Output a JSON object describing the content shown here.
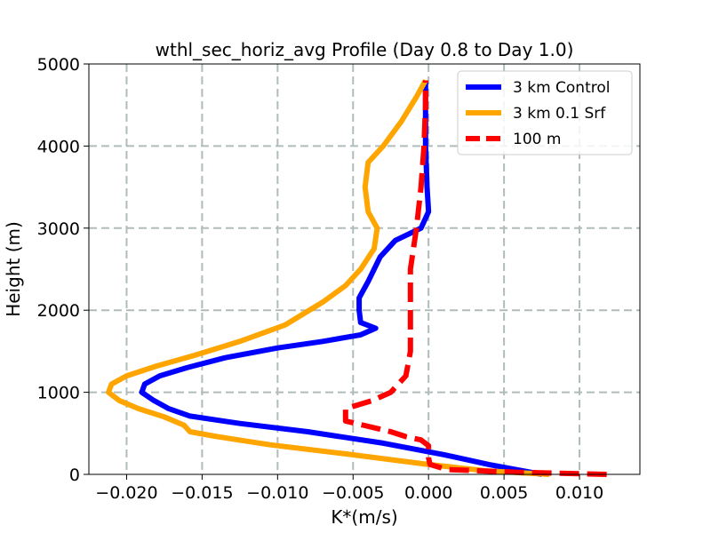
{
  "chart_data": {
    "type": "line",
    "title": "wthl_sec_horiz_avg Profile (Day 0.8 to Day 1.0)",
    "xlabel": "K*(m/s)",
    "ylabel": "Height (m)",
    "xlim": [
      -0.0225,
      0.014
    ],
    "ylim": [
      0,
      5000
    ],
    "xticks": [
      -0.02,
      -0.015,
      -0.01,
      -0.005,
      0.0,
      0.005,
      0.01
    ],
    "xtick_labels": [
      "−0.020",
      "−0.015",
      "−0.010",
      "−0.005",
      "0.000",
      "0.005",
      "0.010"
    ],
    "yticks": [
      0,
      1000,
      2000,
      3000,
      4000,
      5000
    ],
    "ytick_labels": [
      "0",
      "1000",
      "2000",
      "3000",
      "4000",
      "5000"
    ],
    "grid": true,
    "legend_position": "top-right",
    "series": [
      {
        "name": "3 km Control",
        "color": "#0000ff",
        "style": "solid",
        "points": [
          [
            0.0075,
            0
          ],
          [
            0.004,
            120
          ],
          [
            0.001,
            240
          ],
          [
            -0.003,
            380
          ],
          [
            -0.008,
            520
          ],
          [
            -0.0125,
            620
          ],
          [
            -0.0158,
            710
          ],
          [
            -0.0172,
            800
          ],
          [
            -0.0182,
            900
          ],
          [
            -0.019,
            1000
          ],
          [
            -0.0188,
            1100
          ],
          [
            -0.0178,
            1200
          ],
          [
            -0.016,
            1300
          ],
          [
            -0.0135,
            1420
          ],
          [
            -0.01,
            1540
          ],
          [
            -0.007,
            1620
          ],
          [
            -0.0045,
            1700
          ],
          [
            -0.0035,
            1780
          ],
          [
            -0.0045,
            1850
          ],
          [
            -0.0046,
            2000
          ],
          [
            -0.0046,
            2150
          ],
          [
            -0.004,
            2350
          ],
          [
            -0.0032,
            2650
          ],
          [
            -0.0022,
            2850
          ],
          [
            -0.0005,
            3000
          ],
          [
            0.0,
            3200
          ],
          [
            -0.0001,
            3500
          ],
          [
            -0.0002,
            4000
          ],
          [
            -0.0002,
            4500
          ],
          [
            -0.0002,
            4800
          ]
        ]
      },
      {
        "name": "3 km 0.1 Srf",
        "color": "#ffa500",
        "style": "solid",
        "points": [
          [
            0.008,
            0
          ],
          [
            0.004,
            40
          ],
          [
            0.0,
            120
          ],
          [
            -0.0055,
            250
          ],
          [
            -0.0105,
            360
          ],
          [
            -0.014,
            460
          ],
          [
            -0.0158,
            520
          ],
          [
            -0.0162,
            600
          ],
          [
            -0.0175,
            700
          ],
          [
            -0.0192,
            800
          ],
          [
            -0.0205,
            900
          ],
          [
            -0.0212,
            1000
          ],
          [
            -0.021,
            1100
          ],
          [
            -0.02,
            1200
          ],
          [
            -0.018,
            1320
          ],
          [
            -0.0155,
            1450
          ],
          [
            -0.0125,
            1620
          ],
          [
            -0.0095,
            1820
          ],
          [
            -0.007,
            2100
          ],
          [
            -0.0055,
            2300
          ],
          [
            -0.0045,
            2500
          ],
          [
            -0.0036,
            2750
          ],
          [
            -0.0034,
            3000
          ],
          [
            -0.004,
            3200
          ],
          [
            -0.0042,
            3500
          ],
          [
            -0.004,
            3800
          ],
          [
            -0.003,
            4000
          ],
          [
            -0.0018,
            4300
          ],
          [
            -0.0008,
            4600
          ],
          [
            -0.0002,
            4800
          ]
        ]
      },
      {
        "name": "100 m",
        "color": "#ff0000",
        "style": "dashed",
        "points": [
          [
            0.0118,
            0
          ],
          [
            0.006,
            25
          ],
          [
            0.0012,
            60
          ],
          [
            0.0001,
            120
          ],
          [
            0.0,
            200
          ],
          [
            0.0,
            350
          ],
          [
            -0.0005,
            420
          ],
          [
            -0.0015,
            460
          ],
          [
            -0.0025,
            520
          ],
          [
            -0.0055,
            650
          ],
          [
            -0.0055,
            800
          ],
          [
            -0.0037,
            900
          ],
          [
            -0.0025,
            1000
          ],
          [
            -0.0015,
            1200
          ],
          [
            -0.0012,
            1500
          ],
          [
            -0.0012,
            2000
          ],
          [
            -0.0012,
            2500
          ],
          [
            -0.0008,
            3000
          ],
          [
            -0.0005,
            3500
          ],
          [
            -0.0003,
            4000
          ],
          [
            -0.0002,
            4500
          ],
          [
            -0.0002,
            4800
          ]
        ]
      }
    ]
  }
}
